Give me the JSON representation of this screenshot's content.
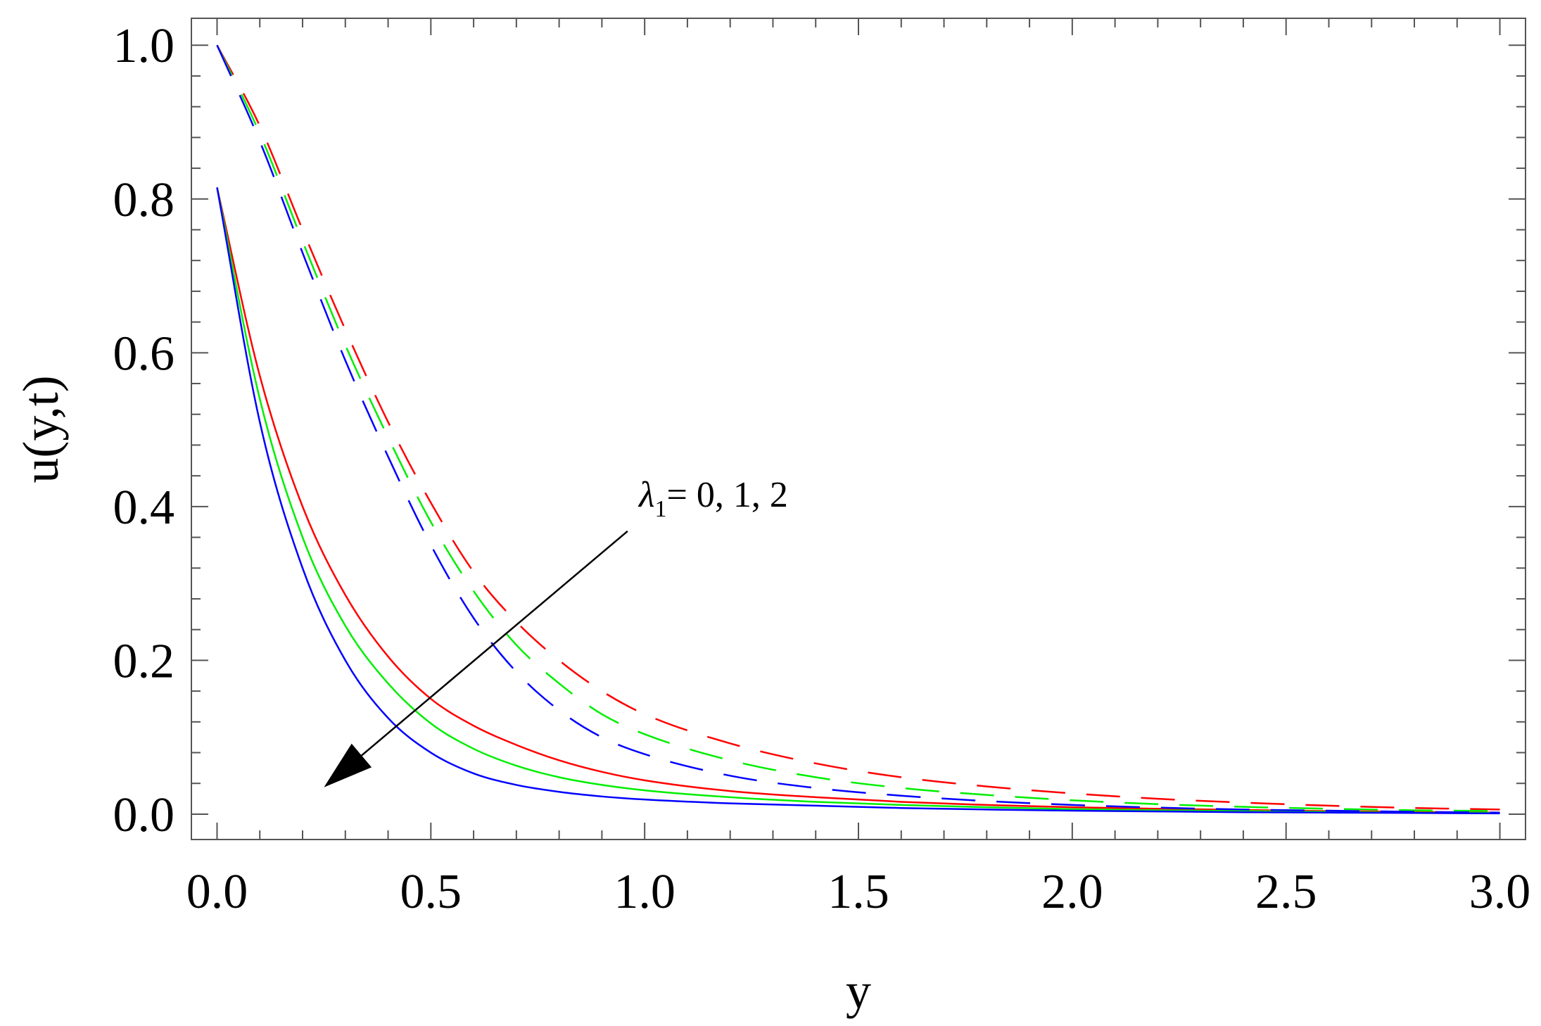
{
  "chart_data": {
    "type": "line",
    "title": "",
    "xlabel": "y",
    "ylabel": "u(y,t)",
    "xlim": [
      -0.06,
      3.06
    ],
    "ylim": [
      -0.033,
      1.035
    ],
    "xticks": [
      "0.0",
      "0.5",
      "1.0",
      "1.5",
      "2.0",
      "2.5",
      "3.0"
    ],
    "xtick_values": [
      0,
      0.5,
      1.0,
      1.5,
      2.0,
      2.5,
      3.0
    ],
    "yticks": [
      "0.0",
      "0.2",
      "0.4",
      "0.6",
      "0.8",
      "1.0"
    ],
    "ytick_values": [
      0,
      0.2,
      0.4,
      0.6,
      0.8,
      1.0
    ],
    "grid": false,
    "legend": "none",
    "x": [
      0,
      0.1,
      0.2,
      0.3,
      0.4,
      0.5,
      0.6,
      0.7,
      0.8,
      0.9,
      1.0,
      1.2,
      1.4,
      1.6,
      1.8,
      2.0,
      2.2,
      2.4,
      2.6,
      2.8,
      3.0
    ],
    "series": [
      {
        "line": "solid",
        "color": "#ff0000",
        "values": [
          0.815,
          0.57,
          0.4,
          0.285,
          0.205,
          0.15,
          0.115,
          0.09,
          0.07,
          0.055,
          0.044,
          0.03,
          0.022,
          0.016,
          0.012,
          0.009,
          0.007,
          0.0055,
          0.004,
          0.003,
          0.002
        ]
      },
      {
        "line": "solid",
        "color": "#00ee00",
        "values": [
          0.815,
          0.54,
          0.36,
          0.245,
          0.17,
          0.118,
          0.085,
          0.063,
          0.048,
          0.038,
          0.031,
          0.022,
          0.016,
          0.012,
          0.009,
          0.0065,
          0.005,
          0.004,
          0.003,
          0.002,
          0.0015
        ]
      },
      {
        "line": "solid",
        "color": "#0000ff",
        "values": [
          0.815,
          0.51,
          0.32,
          0.2,
          0.125,
          0.08,
          0.053,
          0.038,
          0.029,
          0.023,
          0.019,
          0.014,
          0.011,
          0.008,
          0.006,
          0.0045,
          0.0035,
          0.0025,
          0.002,
          0.0015,
          0.001
        ]
      },
      {
        "line": "dashed",
        "color": "#ff0000",
        "values": [
          1.0,
          0.895,
          0.76,
          0.63,
          0.51,
          0.405,
          0.315,
          0.25,
          0.2,
          0.16,
          0.13,
          0.092,
          0.066,
          0.048,
          0.036,
          0.027,
          0.02,
          0.015,
          0.011,
          0.008,
          0.006
        ]
      },
      {
        "line": "dashed",
        "color": "#00ee00",
        "values": [
          1.0,
          0.885,
          0.745,
          0.61,
          0.49,
          0.38,
          0.29,
          0.22,
          0.17,
          0.13,
          0.104,
          0.07,
          0.048,
          0.034,
          0.025,
          0.018,
          0.013,
          0.0095,
          0.007,
          0.005,
          0.004
        ]
      },
      {
        "line": "dashed",
        "color": "#0000ff",
        "values": [
          1.0,
          0.875,
          0.73,
          0.59,
          0.465,
          0.35,
          0.255,
          0.185,
          0.135,
          0.1,
          0.078,
          0.05,
          0.034,
          0.024,
          0.017,
          0.012,
          0.0085,
          0.006,
          0.0045,
          0.003,
          0.002
        ]
      }
    ],
    "annotation": {
      "symbol": "λ",
      "subscript": "1",
      "text": "= 0, 1, 2",
      "arrow_from": [
        0.96,
        0.368
      ],
      "arrow_to": [
        0.25,
        0.035
      ]
    }
  }
}
